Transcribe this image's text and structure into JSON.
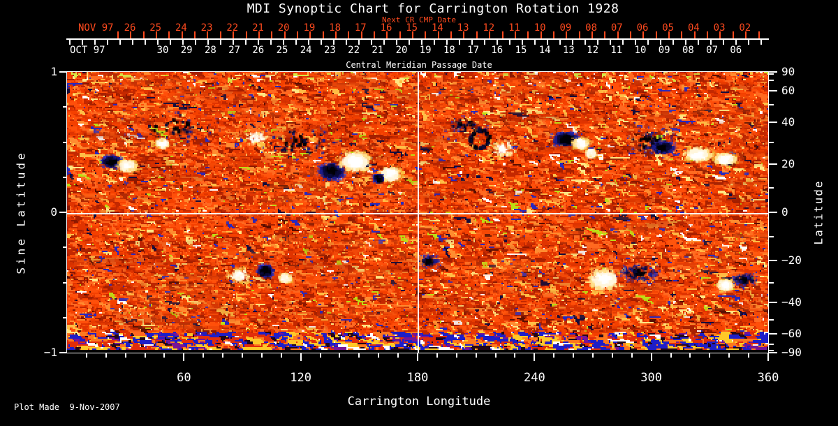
{
  "title": "MDI Synoptic Chart for Carrington Rotation 1928",
  "colors": {
    "background": "#000000",
    "foreground": "#ffffff",
    "date_axis_red": "#ff4a1e"
  },
  "top_axis": {
    "label": "Next CR CMP Date",
    "month_label": "NOV 97",
    "tick_labels": [
      "26",
      "25",
      "24",
      "23",
      "22",
      "21",
      "20",
      "19",
      "18",
      "17",
      "16",
      "15",
      "14",
      "13",
      "12",
      "11",
      "10",
      "09",
      "08",
      "07",
      "06",
      "05",
      "04",
      "03",
      "02"
    ]
  },
  "cmp_axis": {
    "label": "Central Meridian Passage Date",
    "month_label": "OCT 97",
    "tick_labels": [
      "30",
      "29",
      "28",
      "27",
      "26",
      "25",
      "24",
      "23",
      "22",
      "21",
      "20",
      "19",
      "18",
      "17",
      "16",
      "15",
      "14",
      "13",
      "12",
      "11",
      "10",
      "09",
      "08",
      "07",
      "06"
    ]
  },
  "left_axis": {
    "label": "Sine Latitude",
    "major_ticks": [
      {
        "label": "1",
        "value": 1
      },
      {
        "label": "0",
        "value": 0
      },
      {
        "label": "−1",
        "value": -1
      }
    ],
    "minor_tick_values": [
      0.75,
      0.5,
      0.25,
      -0.25,
      -0.5,
      -0.75
    ]
  },
  "right_axis": {
    "label": "Latitude",
    "major_ticks": [
      {
        "label": "90",
        "value": 90
      },
      {
        "label": "60",
        "value": 60
      },
      {
        "label": "40",
        "value": 40
      },
      {
        "label": "20",
        "value": 20
      },
      {
        "label": "0",
        "value": 0
      },
      {
        "label": "−20",
        "value": -20
      },
      {
        "label": "−40",
        "value": -40
      },
      {
        "label": "−60",
        "value": -60
      },
      {
        "label": "−90",
        "value": -90
      }
    ],
    "minor_tick_values": [
      80,
      70,
      50,
      30,
      10,
      -10,
      -30,
      -50,
      -70,
      -80
    ]
  },
  "bottom_axis": {
    "label": "Carrington Longitude",
    "major_ticks": [
      {
        "label": "60",
        "value": 60
      },
      {
        "label": "120",
        "value": 120
      },
      {
        "label": "180",
        "value": 180
      },
      {
        "label": "240",
        "value": 240
      },
      {
        "label": "300",
        "value": 300
      },
      {
        "label": "360",
        "value": 360
      }
    ],
    "minor_tick_step": 10,
    "range": [
      0,
      360
    ]
  },
  "footer": {
    "plot_made": "Plot Made  9-Nov-2007"
  },
  "chart_data": {
    "type": "heatmap",
    "title": "MDI Synoptic Chart for Carrington Rotation 1928",
    "subtitle_top": "Next CR CMP Date",
    "xlabel": "Carrington Longitude",
    "x_range": [
      0,
      360
    ],
    "x_major_ticks": [
      60,
      120,
      180,
      240,
      300,
      360
    ],
    "ylabel_left": "Sine Latitude",
    "y_range_sine": [
      -1,
      1
    ],
    "left_major_ticks": [
      1,
      0,
      -1
    ],
    "ylabel_right": "Latitude",
    "right_major_ticks_deg": [
      90,
      60,
      40,
      20,
      0,
      -20,
      -40,
      -60,
      -90
    ],
    "cmp_date_axis": {
      "month": "OCT 97",
      "days": [
        "30",
        "29",
        "28",
        "27",
        "26",
        "25",
        "24",
        "23",
        "22",
        "21",
        "20",
        "19",
        "18",
        "17",
        "16",
        "15",
        "14",
        "13",
        "12",
        "11",
        "10",
        "09",
        "08",
        "07",
        "06"
      ],
      "label": "Central Meridian Passage Date"
    },
    "next_cr_cmp_axis": {
      "month": "NOV 97",
      "days": [
        "26",
        "25",
        "24",
        "23",
        "22",
        "21",
        "20",
        "19",
        "18",
        "17",
        "16",
        "15",
        "14",
        "13",
        "12",
        "11",
        "10",
        "09",
        "08",
        "07",
        "06",
        "05",
        "04",
        "03",
        "02"
      ]
    },
    "colormap": "orange-red quiet sun; black/blue = negative magnetic field; white/yellow = positive magnetic field",
    "reference_lines": {
      "meridian_lon": 180,
      "equator_sine_lat": 0
    },
    "plot_made": "9-Nov-2007",
    "noise": {
      "base_palette": [
        {
          "rgb": [
            255,
            79,
            10
          ],
          "w": 0.18
        },
        {
          "rgb": [
            244,
            64,
            0
          ],
          "w": 0.16
        },
        {
          "rgb": [
            224,
            52,
            0
          ],
          "w": 0.16
        },
        {
          "rgb": [
            196,
            40,
            0
          ],
          "w": 0.12
        },
        {
          "rgb": [
            168,
            32,
            0
          ],
          "w": 0.08
        },
        {
          "rgb": [
            255,
            104,
            32
          ],
          "w": 0.1
        },
        {
          "rgb": [
            255,
            140,
            48
          ],
          "w": 0.06
        },
        {
          "rgb": [
            255,
            190,
            70
          ],
          "w": 0.045
        },
        {
          "rgb": [
            255,
            230,
            130
          ],
          "w": 0.02
        },
        {
          "rgb": [
            40,
            40,
            190
          ],
          "w": 0.015
        },
        {
          "rgb": [
            20,
            12,
            60
          ],
          "w": 0.012
        },
        {
          "rgb": [
            255,
            255,
            255
          ],
          "w": 0.01
        },
        {
          "rgb": [
            190,
            220,
            20
          ],
          "w": 0.008
        },
        {
          "rgb": [
            140,
            24,
            0
          ],
          "w": 0.02
        },
        {
          "rgb": [
            90,
            14,
            0
          ],
          "w": 0.01
        }
      ],
      "bottom_band_palette": [
        {
          "rgb": [
            30,
            30,
            200
          ],
          "w": 0.24
        },
        {
          "rgb": [
            120,
            20,
            150
          ],
          "w": 0.08
        },
        {
          "rgb": [
            255,
            200,
            40
          ],
          "w": 0.16
        },
        {
          "rgb": [
            255,
            255,
            255
          ],
          "w": 0.07
        },
        {
          "rgb": [
            225,
            45,
            10
          ],
          "w": 0.21
        },
        {
          "rgb": [
            255,
            120,
            30
          ],
          "w": 0.14
        },
        {
          "rgb": [
            35,
            8,
            25
          ],
          "w": 0.1
        }
      ],
      "bottom_band_rows": 15,
      "black_rows": 2,
      "top_band_rows": 6,
      "negative_palette": [
        "#000006",
        "#0a0a3a",
        "#1c1c8c",
        "#3434c0"
      ],
      "positive_palette": [
        "#ffffff",
        "#fff6dc",
        "#ffdf8a",
        "#f0b030"
      ]
    },
    "active_regions": [
      {
        "lon": 54,
        "sin_lat": 0.6,
        "rx_lon": 30,
        "ry_sin": 0.16,
        "polarity": -1,
        "strength": 0.7,
        "shape": "scatter"
      },
      {
        "lon": 23,
        "sin_lat": 0.36,
        "rx_lon": 6,
        "ry_sin": 0.05,
        "polarity": -1,
        "strength": 1.3,
        "shape": "core"
      },
      {
        "lon": 31,
        "sin_lat": 0.33,
        "rx_lon": 6,
        "ry_sin": 0.05,
        "polarity": 1,
        "strength": 1.2,
        "shape": "core"
      },
      {
        "lon": 49,
        "sin_lat": 0.49,
        "rx_lon": 4,
        "ry_sin": 0.04,
        "polarity": 1,
        "strength": 0.7,
        "shape": "core"
      },
      {
        "lon": 120,
        "sin_lat": 0.5,
        "rx_lon": 28,
        "ry_sin": 0.14,
        "polarity": -1,
        "strength": 0.8,
        "shape": "scatter"
      },
      {
        "lon": 97,
        "sin_lat": 0.53,
        "rx_lon": 9,
        "ry_sin": 0.07,
        "polarity": 1,
        "strength": 0.8,
        "shape": "scatter"
      },
      {
        "lon": 136,
        "sin_lat": 0.29,
        "rx_lon": 8,
        "ry_sin": 0.07,
        "polarity": -1,
        "strength": 1.5,
        "shape": "core"
      },
      {
        "lon": 148,
        "sin_lat": 0.36,
        "rx_lon": 10,
        "ry_sin": 0.09,
        "polarity": 1,
        "strength": 1.6,
        "shape": "core"
      },
      {
        "lon": 166,
        "sin_lat": 0.27,
        "rx_lon": 7,
        "ry_sin": 0.06,
        "polarity": 1,
        "strength": 1.3,
        "shape": "core"
      },
      {
        "lon": 160,
        "sin_lat": 0.24,
        "rx_lon": 3,
        "ry_sin": 0.03,
        "polarity": -1,
        "strength": 0.8,
        "shape": "core"
      },
      {
        "lon": 212,
        "sin_lat": 0.52,
        "rx_lon": 5,
        "ry_sin": 0.065,
        "polarity": -1,
        "strength": 1.2,
        "shape": "ring"
      },
      {
        "lon": 206,
        "sin_lat": 0.62,
        "rx_lon": 14,
        "ry_sin": 0.08,
        "polarity": -1,
        "strength": 0.5,
        "shape": "scatter"
      },
      {
        "lon": 224,
        "sin_lat": 0.45,
        "rx_lon": 9,
        "ry_sin": 0.09,
        "polarity": 1,
        "strength": 1.0,
        "shape": "scatter"
      },
      {
        "lon": 256,
        "sin_lat": 0.52,
        "rx_lon": 8,
        "ry_sin": 0.06,
        "polarity": -1,
        "strength": 1.6,
        "shape": "core"
      },
      {
        "lon": 264,
        "sin_lat": 0.49,
        "rx_lon": 5,
        "ry_sin": 0.045,
        "polarity": 1,
        "strength": 1.4,
        "shape": "core"
      },
      {
        "lon": 269,
        "sin_lat": 0.42,
        "rx_lon": 3,
        "ry_sin": 0.03,
        "polarity": 1,
        "strength": 0.8,
        "shape": "core"
      },
      {
        "lon": 299,
        "sin_lat": 0.5,
        "rx_lon": 16,
        "ry_sin": 0.12,
        "polarity": -1,
        "strength": 1.1,
        "shape": "scatter"
      },
      {
        "lon": 306,
        "sin_lat": 0.46,
        "rx_lon": 7,
        "ry_sin": 0.05,
        "polarity": -1,
        "strength": 1.5,
        "shape": "core"
      },
      {
        "lon": 324,
        "sin_lat": 0.41,
        "rx_lon": 9,
        "ry_sin": 0.06,
        "polarity": 1,
        "strength": 1.4,
        "shape": "core"
      },
      {
        "lon": 338,
        "sin_lat": 0.38,
        "rx_lon": 7,
        "ry_sin": 0.05,
        "polarity": 1,
        "strength": 1.2,
        "shape": "core"
      },
      {
        "lon": 89,
        "sin_lat": -0.45,
        "rx_lon": 8,
        "ry_sin": 0.07,
        "polarity": 1,
        "strength": 1.1,
        "shape": "scatter"
      },
      {
        "lon": 102,
        "sin_lat": -0.42,
        "rx_lon": 5,
        "ry_sin": 0.05,
        "polarity": -1,
        "strength": 1.4,
        "shape": "core"
      },
      {
        "lon": 112,
        "sin_lat": -0.47,
        "rx_lon": 4,
        "ry_sin": 0.04,
        "polarity": 1,
        "strength": 0.7,
        "shape": "core"
      },
      {
        "lon": 186,
        "sin_lat": -0.35,
        "rx_lon": 7,
        "ry_sin": 0.06,
        "polarity": -1,
        "strength": 0.7,
        "shape": "scatter"
      },
      {
        "lon": 276,
        "sin_lat": -0.48,
        "rx_lon": 10,
        "ry_sin": 0.09,
        "polarity": 1,
        "strength": 1.5,
        "shape": "core"
      },
      {
        "lon": 294,
        "sin_lat": -0.43,
        "rx_lon": 12,
        "ry_sin": 0.07,
        "polarity": -1,
        "strength": 1.4,
        "shape": "scatter"
      },
      {
        "lon": 338,
        "sin_lat": -0.52,
        "rx_lon": 5,
        "ry_sin": 0.05,
        "polarity": 1,
        "strength": 1.1,
        "shape": "core"
      },
      {
        "lon": 348,
        "sin_lat": -0.48,
        "rx_lon": 8,
        "ry_sin": 0.05,
        "polarity": -1,
        "strength": 1.1,
        "shape": "scatter"
      }
    ]
  }
}
